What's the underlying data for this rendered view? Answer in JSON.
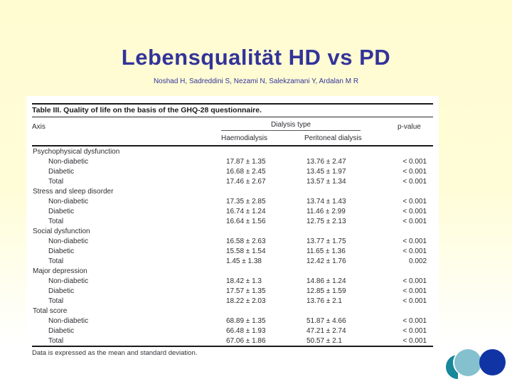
{
  "slide": {
    "title": "Lebensqualität HD vs PD",
    "authors": "Noshad H, Sadreddini S, Nezami N, Salekzamani Y, Ardalan M R",
    "title_color": "#333399",
    "background_top_color": "#fffcd2",
    "background_bottom_color": "#ffffff"
  },
  "table": {
    "caption": "Table III. Quality of life on the basis of the GHQ-28 questionnaire.",
    "headers": {
      "axis": "Axis",
      "dialysis_group": "Dialysis type",
      "haemodialysis": "Haemodialysis",
      "peritoneal": "Peritoneal dialysis",
      "p_value": "p-value"
    },
    "groups": [
      {
        "label": "Psychophysical dysfunction",
        "rows": [
          {
            "label": "Non-diabetic",
            "haemodialysis": "17.87 ± 1.35",
            "peritoneal": "13.76 ± 2.47",
            "p": "< 0.001"
          },
          {
            "label": "Diabetic",
            "haemodialysis": "16.68 ± 2.45",
            "peritoneal": "13.45 ± 1.97",
            "p": "< 0.001"
          },
          {
            "label": "Total",
            "haemodialysis": "17.46 ± 2.67",
            "peritoneal": "13.57 ± 1.34",
            "p": "< 0.001"
          }
        ]
      },
      {
        "label": "Stress and sleep disorder",
        "rows": [
          {
            "label": "Non-diabetic",
            "haemodialysis": "17.35 ± 2.85",
            "peritoneal": "13.74 ± 1.43",
            "p": "< 0.001"
          },
          {
            "label": "Diabetic",
            "haemodialysis": "16.74 ± 1.24",
            "peritoneal": "11.46 ± 2.99",
            "p": "< 0.001"
          },
          {
            "label": "Total",
            "haemodialysis": "16.64 ± 1.56",
            "peritoneal": "12.75 ± 2.13",
            "p": "< 0.001"
          }
        ]
      },
      {
        "label": "Social dysfunction",
        "rows": [
          {
            "label": "Non-diabetic",
            "haemodialysis": "16.58 ± 2.63",
            "peritoneal": "13.77 ± 1.75",
            "p": "< 0.001"
          },
          {
            "label": "Diabetic",
            "haemodialysis": "15.58 ± 1.54",
            "peritoneal": "11.65 ± 1.36",
            "p": "< 0.001"
          },
          {
            "label": "Total",
            "haemodialysis": "1.45 ± 1.38",
            "peritoneal": "12.42 ± 1.76",
            "p": "0.002"
          }
        ]
      },
      {
        "label": "Major depression",
        "rows": [
          {
            "label": "Non-diabetic",
            "haemodialysis": "18.42 ± 1.3",
            "peritoneal": "14.86 ± 1.24",
            "p": "< 0.001"
          },
          {
            "label": "Diabetic",
            "haemodialysis": "17.57 ± 1.35",
            "peritoneal": "12.85 ± 1.59",
            "p": "< 0.001"
          },
          {
            "label": "Total",
            "haemodialysis": "18.22 ± 2.03",
            "peritoneal": "13.76 ± 2.1",
            "p": "< 0.001"
          }
        ]
      },
      {
        "label": "Total score",
        "rows": [
          {
            "label": "Non-diabetic",
            "haemodialysis": "68.89 ± 1.35",
            "peritoneal": "51.87 ± 4.66",
            "p": "< 0.001"
          },
          {
            "label": "Diabetic",
            "haemodialysis": "66.48 ± 1.93",
            "peritoneal": "47.21 ± 2.74",
            "p": "< 0.001"
          },
          {
            "label": "Total",
            "haemodialysis": "67.06 ± 1.86",
            "peritoneal": "50.57 ± 2.1",
            "p": "< 0.001"
          }
        ]
      }
    ],
    "footnote": "Data is expressed as the mean and standard deviation."
  },
  "decor": {
    "half_moon_color": "#17879a",
    "light_circle_color": "#84c0cd",
    "dark_circle_color": "#1134a4"
  }
}
